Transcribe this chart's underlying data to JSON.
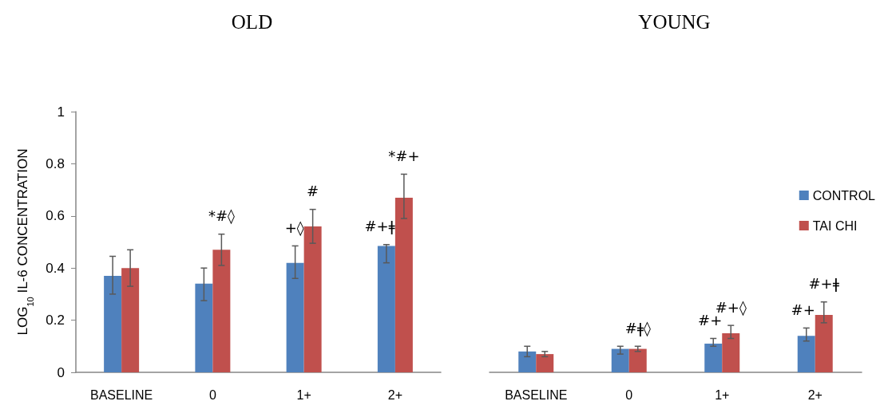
{
  "chart_data": [
    {
      "type": "bar",
      "title": "OLD",
      "ylabel": "LOG$_{10}$ IL-6 CONCENTRATION",
      "categories": [
        "BASELINE",
        "0",
        "1+",
        "2+"
      ],
      "ylim": [
        0,
        1
      ],
      "yticks": [
        0,
        0.2,
        0.4,
        0.6,
        0.8,
        1
      ],
      "grid": false,
      "legend": false,
      "series": [
        {
          "color": "#4f81bd",
          "values": [
            0.37,
            0.34,
            0.42,
            0.485
          ],
          "errors": [
            [
              0.3,
              0.445
            ],
            [
              0.275,
              0.4
            ],
            [
              0.36,
              0.485
            ],
            [
              0.42,
              0.49
            ]
          ]
        },
        {
          "color": "#c0504d",
          "values": [
            0.4,
            0.47,
            0.56,
            0.67
          ],
          "errors": [
            [
              0.33,
              0.47
            ],
            [
              0.41,
              0.53
            ],
            [
              0.495,
              0.625
            ],
            [
              0.59,
              0.76
            ]
          ]
        }
      ],
      "annotations": [
        {
          "text": "*#◊",
          "x": "0",
          "y": 0.47
        },
        {
          "text": "+◊",
          "x": "1+",
          "y": 0.42
        },
        {
          "text": "#",
          "x": "1+",
          "y": 0.56
        },
        {
          "text": "#+ǂ",
          "x": "2+",
          "y": 0.485
        },
        {
          "text": "*#+",
          "x": "2+",
          "y": 0.67
        }
      ]
    },
    {
      "type": "bar",
      "title": "YOUNG",
      "categories": [
        "BASELINE",
        "0",
        "1+",
        "2+"
      ],
      "ylim": [
        0,
        1
      ],
      "yticks": [
        0,
        0.2,
        0.4,
        0.6,
        0.8,
        1
      ],
      "grid": false,
      "legend": "right",
      "tick_labels": "x",
      "series": [
        {
          "name": "CONTROL",
          "color": "#4f81bd",
          "values": [
            0.08,
            0.09,
            0.11,
            0.14
          ],
          "errors": [
            [
              0.06,
              0.1
            ],
            [
              0.07,
              0.1
            ],
            [
              0.1,
              0.13
            ],
            [
              0.12,
              0.17
            ]
          ]
        },
        {
          "name": "TAI CHI",
          "color": "#c0504d",
          "values": [
            0.07,
            0.09,
            0.15,
            0.22
          ],
          "errors": [
            [
              0.06,
              0.08
            ],
            [
              0.08,
              0.1
            ],
            [
              0.13,
              0.18
            ],
            [
              0.19,
              0.27
            ]
          ]
        }
      ],
      "annotations": [
        {
          "text": "#ǂ◊",
          "x": "0",
          "y": 0.09
        },
        {
          "text": "#+",
          "x": "1+",
          "y": 0.11
        },
        {
          "text": "#+◊",
          "x": "1+",
          "y": 0.15
        },
        {
          "text": "#+",
          "x": "2+",
          "y": 0.14
        },
        {
          "text": "#+ǂ",
          "x": "2+",
          "y": 0.22
        }
      ]
    }
  ]
}
